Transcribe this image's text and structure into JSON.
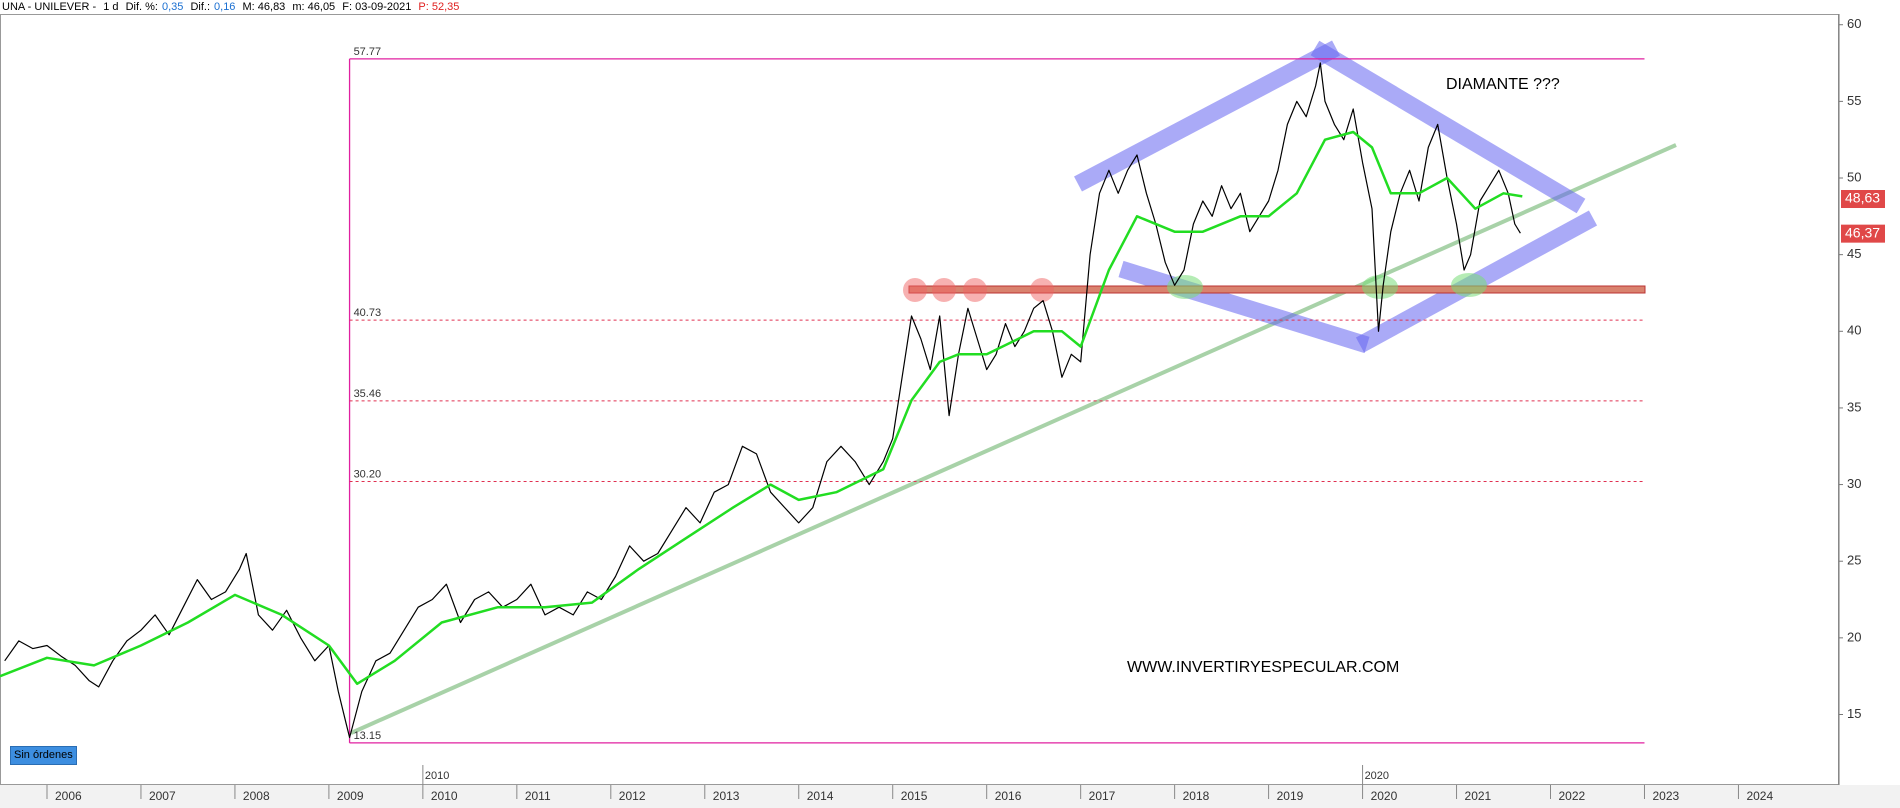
{
  "header": {
    "symbol": "UNA - UNILEVER -",
    "period": "1 d",
    "dif_pct_label": "Dif. %:",
    "dif_pct": "0,35",
    "dif_label": "Dif.:",
    "dif": "0,16",
    "max": "M: 46,83",
    "min": "m: 46,05",
    "date": "F: 03-09-2021",
    "price": "P: 52,35"
  },
  "status": "Sin órdenes",
  "chart_data": {
    "type": "line",
    "xlim": [
      2005.5,
      2025.07
    ],
    "ylim": [
      10.4,
      60.7
    ],
    "xticks": [
      2006,
      2007,
      2008,
      2009,
      2010,
      2011,
      2012,
      2013,
      2014,
      2015,
      2016,
      2017,
      2018,
      2019,
      2020,
      2021,
      2022,
      2023,
      2024
    ],
    "major_xticks": [
      2010,
      2020
    ],
    "yticks": [
      15,
      20,
      25,
      30,
      35,
      40,
      45,
      50,
      55,
      60
    ],
    "series": [
      {
        "color": "#000000",
        "x": [
          2005.55,
          2005.7,
          2005.85,
          2006.0,
          2006.15,
          2006.3,
          2006.45,
          2006.55,
          2006.7,
          2006.85,
          2007.0,
          2007.15,
          2007.3,
          2007.45,
          2007.6,
          2007.75,
          2007.9,
          2008.05,
          2008.12,
          2008.25,
          2008.4,
          2008.55,
          2008.7,
          2008.85,
          2009.0,
          2009.1,
          2009.18,
          2009.22,
          2009.35,
          2009.5,
          2009.65,
          2009.8,
          2009.95,
          2010.1,
          2010.25,
          2010.4,
          2010.55,
          2010.7,
          2010.85,
          2011.0,
          2011.15,
          2011.3,
          2011.45,
          2011.6,
          2011.75,
          2011.9,
          2012.05,
          2012.2,
          2012.35,
          2012.5,
          2012.65,
          2012.8,
          2012.95,
          2013.1,
          2013.25,
          2013.4,
          2013.55,
          2013.7,
          2013.85,
          2014.0,
          2014.15,
          2014.3,
          2014.45,
          2014.6,
          2014.75,
          2014.9,
          2015.0,
          2015.1,
          2015.2,
          2015.3,
          2015.4,
          2015.5,
          2015.6,
          2015.7,
          2015.8,
          2015.9,
          2016.0,
          2016.1,
          2016.2,
          2016.3,
          2016.4,
          2016.5,
          2016.6,
          2016.7,
          2016.8,
          2016.9,
          2017.0,
          2017.1,
          2017.2,
          2017.3,
          2017.4,
          2017.5,
          2017.6,
          2017.7,
          2017.8,
          2017.9,
          2018.0,
          2018.1,
          2018.2,
          2018.3,
          2018.4,
          2018.5,
          2018.6,
          2018.7,
          2018.8,
          2018.9,
          2019.0,
          2019.1,
          2019.2,
          2019.3,
          2019.4,
          2019.5,
          2019.55,
          2019.6,
          2019.7,
          2019.8,
          2019.9,
          2020.0,
          2020.1,
          2020.17,
          2020.22,
          2020.3,
          2020.4,
          2020.5,
          2020.6,
          2020.7,
          2020.8,
          2020.9,
          2021.0,
          2021.08,
          2021.15,
          2021.25,
          2021.35,
          2021.45,
          2021.55,
          2021.62,
          2021.68
        ],
        "values": [
          18.5,
          19.8,
          19.3,
          19.5,
          18.8,
          18.2,
          17.2,
          16.8,
          18.5,
          19.8,
          20.5,
          21.5,
          20.2,
          22,
          23.8,
          22.5,
          23,
          24.5,
          25.5,
          21.5,
          20.5,
          21.8,
          20,
          18.5,
          19.5,
          16.5,
          14.5,
          13.5,
          16.5,
          18.5,
          19,
          20.5,
          22,
          22.5,
          23.5,
          21,
          22.5,
          23,
          22,
          22.5,
          23.5,
          21.5,
          22,
          21.5,
          23,
          22.5,
          24,
          26,
          25,
          25.5,
          27,
          28.5,
          27.5,
          29.5,
          30,
          32.5,
          32,
          29.5,
          28.5,
          27.5,
          28.5,
          31.5,
          32.5,
          31.5,
          30,
          31.5,
          33,
          37,
          41,
          39.5,
          37.5,
          41,
          34.5,
          38.5,
          41.5,
          39.5,
          37.5,
          38.5,
          40.5,
          39,
          40,
          41.5,
          42,
          40,
          37,
          38.5,
          38,
          45,
          49,
          50.5,
          49,
          50.5,
          51.5,
          49,
          47,
          44.5,
          43,
          44,
          47,
          48.5,
          47.5,
          49.5,
          48,
          49,
          46.5,
          47.5,
          48.5,
          50.5,
          53.5,
          55,
          54,
          56,
          57.5,
          55,
          53.5,
          52.5,
          54.5,
          51,
          48,
          40,
          43,
          46.5,
          49,
          50.5,
          48.5,
          52,
          53.5,
          50,
          47,
          44,
          45,
          48.5,
          49.5,
          50.5,
          49,
          47,
          46.4
        ]
      },
      {
        "color": "#22dd22",
        "x": [
          2005.5,
          2006.0,
          2006.5,
          2007.0,
          2007.5,
          2008.0,
          2008.5,
          2009.0,
          2009.3,
          2009.7,
          2010.2,
          2010.8,
          2011.3,
          2011.8,
          2012.3,
          2012.8,
          2013.3,
          2013.7,
          2014.0,
          2014.4,
          2014.9,
          2015.2,
          2015.5,
          2015.7,
          2016.0,
          2016.5,
          2016.8,
          2017.0,
          2017.3,
          2017.6,
          2018.0,
          2018.3,
          2018.7,
          2019.0,
          2019.3,
          2019.6,
          2019.9,
          2020.1,
          2020.3,
          2020.6,
          2020.9,
          2021.2,
          2021.5,
          2021.7
        ],
        "values": [
          17.5,
          18.7,
          18.2,
          19.5,
          21,
          22.8,
          21.5,
          19.5,
          17,
          18.5,
          21,
          22,
          22,
          22.3,
          24.5,
          26.5,
          28.5,
          30,
          29,
          29.5,
          31,
          35.5,
          38,
          38.5,
          38.5,
          40,
          40,
          39,
          44,
          47.5,
          46.5,
          46.5,
          47.5,
          47.5,
          49,
          52.5,
          53,
          52,
          49,
          49,
          50,
          48,
          49,
          48.8
        ]
      }
    ],
    "fib_x_range": [
      2009.22,
      2023.0
    ],
    "fib_levels": [
      57.77,
      40.73,
      35.46,
      {
        "value": 30.2,
        "label": "30.20"
      },
      13.15
    ],
    "price_tags": [
      {
        "value": 48.63,
        "label": "48,63"
      },
      {
        "value": 46.37,
        "label": "46,37"
      }
    ],
    "annotations": [
      "DIAMANTE ???",
      "WWW.INVERTIRYESPECULAR.COM"
    ]
  }
}
